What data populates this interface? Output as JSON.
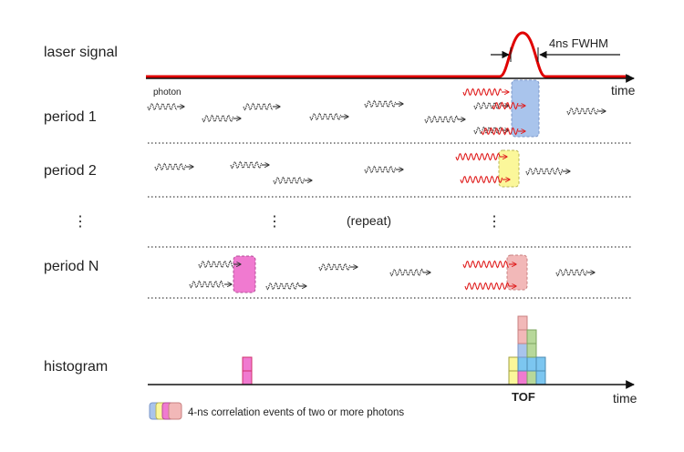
{
  "labels": {
    "laser_signal": "laser signal",
    "period_1": "period 1",
    "period_2": "period 2",
    "ellipsis_left": "⋮",
    "ellipsis_mid": "⋮",
    "ellipsis_right": "⋮",
    "repeat": "(repeat)",
    "period_n": "period N",
    "histogram": "histogram",
    "photon": "photon",
    "time_top": "time",
    "time_bottom": "time",
    "fwhm": "4ns FWHM",
    "tof": "TOF",
    "legend_text": "4-ns correlation events of two or more photons"
  },
  "colors": {
    "laser_red": "#e00000",
    "photon_black": "#333333",
    "photon_red": "#e02020",
    "blue_box": "#a9c4ec",
    "yellow_box": "#fbf79a",
    "magenta_box": "#f07ad0",
    "pink_box": "#f2b8b8",
    "green_box": "#b7d89a",
    "cyan_box": "#7cc6f0"
  },
  "icons": [
    "photon-wave-icon",
    "correlation-box-icon",
    "histogram-bar-icon",
    "arrow-icon"
  ]
}
